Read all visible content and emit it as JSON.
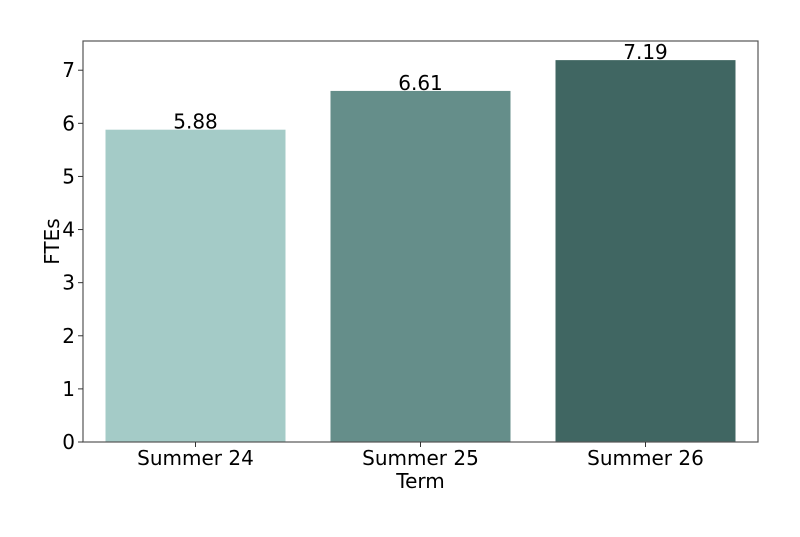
{
  "chart_data": {
    "type": "bar",
    "title": "",
    "xlabel": "Term",
    "ylabel": "FTEs",
    "categories": [
      "Summer 24",
      "Summer 25",
      "Summer 26"
    ],
    "values": [
      5.88,
      6.61,
      7.19
    ],
    "data_labels": [
      "5.88",
      "6.61",
      "7.19"
    ],
    "colors": [
      "#a4cbc7",
      "#658e8a",
      "#406662"
    ],
    "ylim": [
      0,
      7.55
    ],
    "yticks": [
      0,
      1,
      2,
      3,
      4,
      5,
      6,
      7
    ],
    "grid": false,
    "legend": "none"
  }
}
